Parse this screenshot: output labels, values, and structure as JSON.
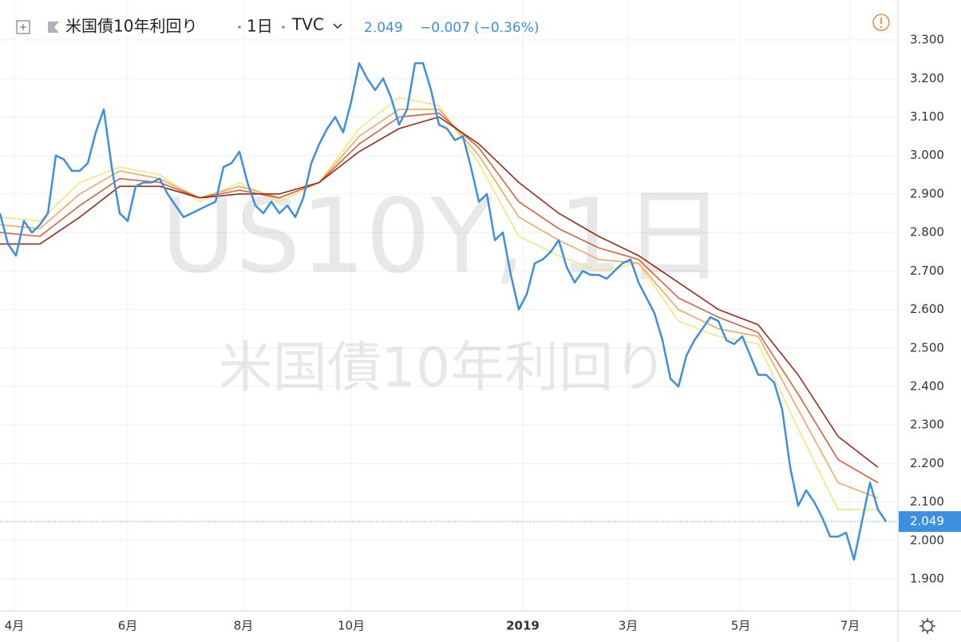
{
  "chart_data": {
    "type": "line",
    "title": "米国債10年利回り",
    "interval": "1日",
    "source": "TVC",
    "last_value": 2.049,
    "change": "−0.007",
    "change_pct": "(−0.36%)",
    "watermark": "US10Y, 1日",
    "watermark_sub": "米国債10年利回り",
    "xlim": [
      0,
      112.5
    ],
    "xticks": [
      {
        "value": 1.8,
        "label": "4月"
      },
      {
        "value": 16,
        "label": "6月"
      },
      {
        "value": 30.5,
        "label": "8月"
      },
      {
        "value": 44,
        "label": "10月"
      },
      {
        "value": 65.5,
        "label": "2019"
      },
      {
        "value": 78.7,
        "label": "3月"
      },
      {
        "value": 92.8,
        "label": "5月"
      },
      {
        "value": 106.5,
        "label": "7月"
      }
    ],
    "ylim": [
      1.817,
      3.404
    ],
    "yticks": [
      {
        "value": 1.9,
        "label": "1.900"
      },
      {
        "value": 2.0,
        "label": "2.000"
      },
      {
        "value": 2.1,
        "label": "2.100"
      },
      {
        "value": 2.2,
        "label": "2.200"
      },
      {
        "value": 2.3,
        "label": "2.300"
      },
      {
        "value": 2.4,
        "label": "2.400"
      },
      {
        "value": 2.5,
        "label": "2.500"
      },
      {
        "value": 2.6,
        "label": "2.600"
      },
      {
        "value": 2.7,
        "label": "2.700"
      },
      {
        "value": 2.8,
        "label": "2.800"
      },
      {
        "value": 2.9,
        "label": "2.900"
      },
      {
        "value": 3.0,
        "label": "3.000"
      },
      {
        "value": 3.1,
        "label": "3.100"
      },
      {
        "value": 3.2,
        "label": "3.200"
      },
      {
        "value": 3.3,
        "label": "3.300"
      }
    ],
    "grid": true,
    "series": [
      {
        "name": "US10Y",
        "color": "#3d8fe0",
        "values": [
          2.85,
          2.77,
          2.74,
          2.83,
          2.8,
          2.82,
          2.85,
          3.0,
          2.99,
          2.96,
          2.96,
          2.98,
          3.06,
          3.12,
          2.97,
          2.85,
          2.83,
          2.92,
          2.93,
          2.93,
          2.94,
          2.9,
          2.87,
          2.84,
          2.85,
          2.86,
          2.87,
          2.88,
          2.97,
          2.98,
          3.01,
          2.93,
          2.87,
          2.85,
          2.88,
          2.85,
          2.87,
          2.84,
          2.89,
          2.98,
          3.03,
          3.07,
          3.1,
          3.06,
          3.14,
          3.24,
          3.2,
          3.17,
          3.2,
          3.15,
          3.08,
          3.12,
          3.24,
          3.24,
          3.17,
          3.08,
          3.07,
          3.04,
          3.05,
          2.97,
          2.88,
          2.9,
          2.78,
          2.8,
          2.69,
          2.6,
          2.64,
          2.72,
          2.73,
          2.75,
          2.78,
          2.71,
          2.67,
          2.7,
          2.69,
          2.69,
          2.68,
          2.7,
          2.72,
          2.73,
          2.67,
          2.63,
          2.59,
          2.52,
          2.42,
          2.4,
          2.48,
          2.52,
          2.55,
          2.58,
          2.57,
          2.52,
          2.51,
          2.53,
          2.48,
          2.43,
          2.43,
          2.41,
          2.34,
          2.19,
          2.09,
          2.13,
          2.1,
          2.06,
          2.01,
          2.01,
          2.02,
          1.95,
          2.05,
          2.15,
          2.08,
          2.049
        ]
      },
      {
        "color": "#9a2a18",
        "x": [
          0,
          5,
          10,
          15,
          20,
          25,
          30,
          35,
          40,
          45,
          50,
          55,
          60,
          65,
          70,
          75,
          80,
          85,
          90,
          95,
          100,
          105,
          110
        ],
        "values": [
          2.77,
          2.77,
          2.84,
          2.92,
          2.92,
          2.89,
          2.9,
          2.9,
          2.93,
          3.01,
          3.07,
          3.1,
          3.03,
          2.93,
          2.85,
          2.79,
          2.74,
          2.67,
          2.6,
          2.56,
          2.43,
          2.27,
          2.19
        ]
      },
      {
        "color": "#d9603e",
        "x": [
          0,
          5,
          10,
          15,
          20,
          25,
          30,
          35,
          40,
          45,
          50,
          55,
          60,
          65,
          70,
          75,
          80,
          85,
          90,
          95,
          100,
          105,
          110
        ],
        "values": [
          2.8,
          2.79,
          2.87,
          2.94,
          2.93,
          2.89,
          2.91,
          2.89,
          2.93,
          3.03,
          3.1,
          3.11,
          3.02,
          2.88,
          2.81,
          2.76,
          2.73,
          2.63,
          2.58,
          2.54,
          2.38,
          2.21,
          2.15
        ]
      },
      {
        "color": "#f0a860",
        "x": [
          0,
          5,
          10,
          15,
          20,
          25,
          30,
          35,
          40,
          45,
          50,
          55,
          60,
          65,
          70,
          75,
          80,
          85,
          90,
          95,
          100,
          105,
          110
        ],
        "values": [
          2.82,
          2.81,
          2.9,
          2.96,
          2.94,
          2.89,
          2.92,
          2.89,
          2.93,
          3.05,
          3.12,
          3.12,
          3.0,
          2.84,
          2.78,
          2.73,
          2.72,
          2.6,
          2.55,
          2.53,
          2.34,
          2.15,
          2.11
        ]
      },
      {
        "color": "#f5e67a",
        "x": [
          0,
          5,
          10,
          15,
          20,
          25,
          30,
          35,
          40,
          45,
          50,
          55,
          60,
          65,
          70,
          75,
          80,
          85,
          90,
          95,
          100,
          105,
          110
        ],
        "values": [
          2.84,
          2.83,
          2.93,
          2.97,
          2.95,
          2.88,
          2.93,
          2.88,
          2.93,
          3.07,
          3.15,
          3.13,
          2.98,
          2.79,
          2.74,
          2.7,
          2.72,
          2.57,
          2.53,
          2.51,
          2.29,
          2.08,
          2.08
        ]
      }
    ]
  }
}
